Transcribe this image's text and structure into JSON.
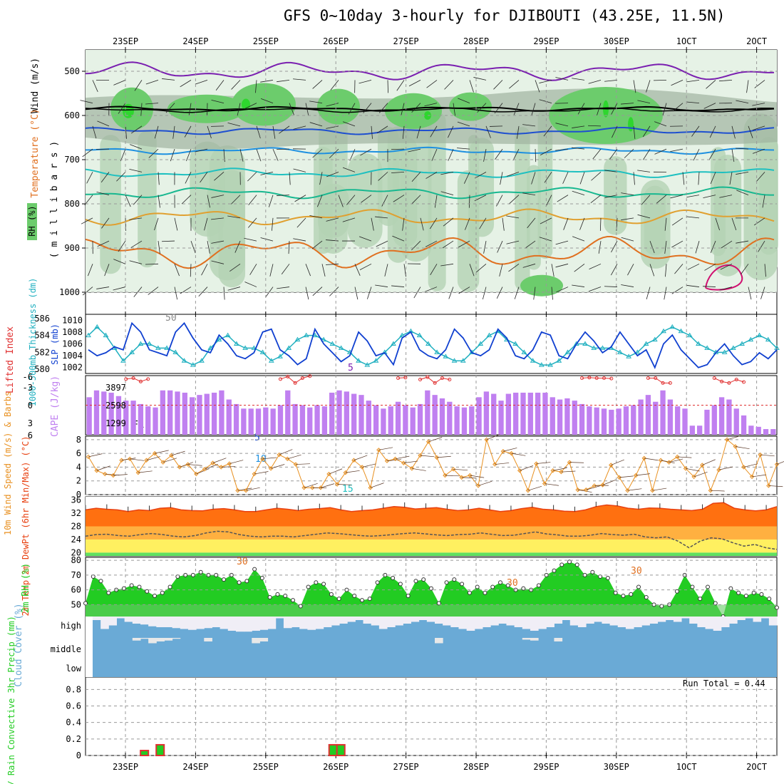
{
  "title": "GFS 0~10day 3-hourly for DJIBOUTI (43.25E, 11.5N)",
  "dates": [
    "23SEP",
    "24SEP",
    "25SEP",
    "26SEP",
    "27SEP",
    "28SEP",
    "29SEP",
    "30SEP",
    "1OCT",
    "2OCT"
  ],
  "run_total": "Run Total = 0.44",
  "colors": {
    "rh_light": "#e6f2e6",
    "rh_mid": "#b4d2b4",
    "rh_gray": "#a0b4a0",
    "rh_green": "#6ccc6c",
    "rh_bright": "#2ed62e",
    "t5_upper": "#7a1fb0",
    "t_fr": "#000000",
    "t5": "#1e4fd0",
    "t10": "#1e90e0",
    "t15": "#1ec0c0",
    "t20": "#18b890",
    "t25": "#e0a030",
    "t30": "#e07020",
    "t_hot": "#d01070",
    "slp": "#1040d0",
    "thk": "#20b0c0",
    "cape": "#c080f0",
    "li": "#e03030",
    "wind10": "#e89020",
    "temp_fill": "#e84010",
    "cloud": "#6aaad6",
    "rh2m": "#22cc22",
    "rain": "#22cc22",
    "conv": "#e03030"
  },
  "chart_data": [
    {
      "type": "contour-heatmap",
      "name": "upper-air",
      "ylabel_parts": [
        "Wind (m/s)",
        "Temperature (°C)",
        "RH (%)"
      ],
      "yunit": "( m i l l i b a r s )",
      "yticks": [
        500,
        600,
        700,
        800,
        900,
        1000
      ],
      "isotherm_labels": [
        "5",
        "FR",
        "5",
        "10",
        "15",
        "20",
        "25",
        "30",
        "30",
        "30",
        "50"
      ],
      "rh_shading": "%"
    },
    {
      "type": "line",
      "name": "slp-thickness",
      "ylabel": "SLP (mb)",
      "ylabel2": "1000-500mb Thickness (dm)",
      "ylim_slp": [
        1001,
        1011
      ],
      "ylim_thk": [
        579.5,
        586.5
      ],
      "yticks_thk": [
        580,
        582,
        584,
        586
      ],
      "yticks_slp": [
        1002,
        1004,
        1006,
        1008,
        1010
      ],
      "slp": [
        1005,
        1004,
        1004.5,
        1005.5,
        1005,
        1009.5,
        1008,
        1005,
        1004.5,
        1004,
        1008,
        1009.5,
        1007,
        1005,
        1004.5,
        1007.5,
        1006,
        1004,
        1003.5,
        1004.5,
        1008,
        1008.5,
        1005,
        1004,
        1002.5,
        1003.5,
        1008.5,
        1006,
        1004.5,
        1003,
        1004,
        1008,
        1006.5,
        1004,
        1004.5,
        1002.5,
        1007,
        1008,
        1005,
        1004,
        1003.5,
        1005,
        1008.5,
        1007,
        1004.5,
        1004,
        1005,
        1008.5,
        1007,
        1004,
        1003.5,
        1005,
        1008,
        1007.5,
        1004,
        1003.5,
        1006,
        1008,
        1006.5,
        1004.5,
        1005.5,
        1008,
        1006,
        1004,
        1005,
        1002,
        1006,
        1007.5,
        1005,
        1003.5,
        1002,
        1002.5,
        1004.5,
        1006,
        1004,
        1002.5,
        1003,
        1004.5,
        1003.5,
        1005
      ],
      "thickness": [
        584,
        585,
        584,
        582.5,
        581,
        582,
        583,
        583,
        582.5,
        582.5,
        582,
        581,
        580.5,
        581,
        582.5,
        583.5,
        584,
        583,
        582.5,
        582.5,
        582,
        581,
        581.5,
        582.5,
        583.5,
        584,
        584,
        583.5,
        583,
        582.5,
        582,
        581,
        580.5,
        581,
        582,
        583,
        584,
        584.5,
        584,
        583,
        582,
        581.5,
        581,
        581,
        582,
        583,
        584,
        584.5,
        583.5,
        583,
        582,
        581,
        580.5,
        580.5,
        581,
        582,
        583,
        583,
        582.5,
        582.5,
        582.5,
        582,
        581.5,
        582,
        583,
        583.5,
        584.5,
        585,
        584.5,
        584,
        583,
        582.5,
        582,
        582,
        582.5,
        583,
        583.5,
        584,
        583.5,
        582.5
      ]
    },
    {
      "type": "bar",
      "name": "cape-li",
      "ylabel": "CAPE (J/kg)",
      "ylabel2": "Lifted Index",
      "yticks_cape": [
        "3897",
        "2598",
        "1299"
      ],
      "yticks_li": [
        "-3",
        "0",
        "3",
        "6"
      ],
      "li_extra": "-6",
      "cape": [
        3300,
        3900,
        3800,
        3700,
        3400,
        3000,
        3000,
        2700,
        2500,
        2400,
        3900,
        3900,
        3800,
        3700,
        3300,
        3500,
        3600,
        3700,
        3900,
        3100,
        2700,
        2300,
        2300,
        2300,
        2400,
        2300,
        2600,
        3900,
        2700,
        2600,
        2400,
        2600,
        2500,
        3700,
        3900,
        3800,
        3600,
        3500,
        3000,
        2600,
        2300,
        2500,
        2900,
        2600,
        2400,
        2700,
        3900,
        3500,
        3200,
        2900,
        2500,
        2400,
        2500,
        3300,
        3800,
        3600,
        3000,
        3600,
        3700,
        3700,
        3700,
        3700,
        3700,
        3300,
        3100,
        3200,
        3000,
        2700,
        2500,
        2400,
        2300,
        2200,
        2300,
        2500,
        2600,
        3100,
        3500,
        2900,
        3900,
        3100,
        2500,
        2300,
        800,
        800,
        2200,
        2600,
        3300,
        3100,
        2300,
        1700,
        800,
        700,
        500,
        500
      ],
      "li": [
        null,
        null,
        null,
        null,
        null,
        -5.3,
        -5.5,
        -4.8,
        -5.3,
        null,
        null,
        null,
        null,
        null,
        null,
        null,
        null,
        null,
        null,
        null,
        null,
        null,
        null,
        null,
        null,
        null,
        -5.3,
        -5.8,
        -4.5,
        -5.5,
        -5.9,
        null,
        null,
        null,
        null,
        null,
        null,
        null,
        null,
        null,
        null,
        null,
        -5.5,
        -5.6,
        null,
        -5.2,
        -5.7,
        -4.5,
        -5.5,
        -5.2,
        null,
        null,
        null,
        null,
        null,
        null,
        null,
        null,
        null,
        null,
        null,
        null,
        null,
        null,
        null,
        null,
        null,
        -5.5,
        -5.6,
        -5.5,
        -5.5,
        -5.4,
        null,
        null,
        null,
        null,
        -5.5,
        -5.5,
        -4.5,
        -4.5,
        null,
        null,
        null,
        null,
        null,
        -5.5,
        -4.8,
        -4.5,
        -5.2,
        -4.7
      ]
    },
    {
      "type": "line",
      "name": "wind10m",
      "ylabel": "10m Wind Speed (m/s) & Barbs",
      "yticks": [
        0,
        2,
        4,
        6,
        8
      ],
      "ylim": [
        0,
        8.5
      ],
      "values": [
        5.5,
        3.5,
        3,
        2.8,
        5,
        5.2,
        3.2,
        5,
        6,
        4.7,
        5.7,
        4,
        4.4,
        3,
        3.7,
        4.6,
        4,
        4.5,
        0.6,
        0.6,
        3,
        5.2,
        3.8,
        5.8,
        5.2,
        4.4,
        1,
        1,
        1,
        3,
        1.5,
        3.2,
        5,
        4,
        1,
        6.5,
        4.9,
        5.2,
        4.6,
        3.8,
        5.7,
        7.7,
        5.4,
        2.8,
        3.7,
        2.5,
        2.8,
        1.3,
        8,
        4.4,
        6.3,
        6,
        3.5,
        0.6,
        4.5,
        1.6,
        3.5,
        3.3,
        4.7,
        0.7,
        0.7,
        1.3,
        1.4,
        4.3,
        2.5,
        0.6,
        2.8,
        5.3,
        0.6,
        5,
        4.7,
        5.5,
        3.8,
        2.6,
        4.3,
        0.6,
        3.6,
        8,
        7,
        4,
        2.6,
        5.8,
        1.3,
        4.4
      ]
    },
    {
      "type": "area",
      "name": "temp2m",
      "ylabel": "2m Temp 2m DewPt (6hr Min/Max) (°C)",
      "yticks": [
        20,
        24,
        28,
        32,
        36
      ],
      "ylim": [
        19,
        37
      ],
      "temp": [
        33,
        33.5,
        33.2,
        33,
        32.5,
        33,
        32.8,
        33.5,
        33.7,
        33,
        32.8,
        32.7,
        33.2,
        33.4,
        33,
        32.5,
        32.5,
        33,
        33.5,
        33.2,
        32.8,
        33.2,
        33.4,
        33.7,
        33,
        32.5,
        32.8,
        33,
        33.5,
        34,
        33.8,
        33.3,
        33.5,
        33.7,
        33.2,
        32.8,
        33,
        33.5,
        33,
        32.5,
        32.8,
        33.4,
        33.8,
        33.2,
        33,
        32.6,
        32.5,
        33,
        34,
        34.5,
        34.2,
        33.5,
        33.2,
        33.6,
        33.5,
        33.2,
        33,
        32.8,
        33.2,
        35,
        35.2,
        33.5,
        33,
        32.7,
        33,
        34
      ],
      "dewpt": [
        25,
        25.5,
        25.6,
        25.2,
        25,
        25.5,
        25.8,
        25.5,
        25,
        24.8,
        25.2,
        26,
        26.5,
        26.3,
        25.5,
        25,
        24.8,
        25,
        25,
        24.8,
        25.2,
        25.6,
        26,
        25.8,
        25.5,
        25.2,
        25,
        25.2,
        25.5,
        25.8,
        26,
        25.7,
        25.4,
        25.2,
        25.5,
        25.6,
        26,
        25.6,
        25.2,
        25.3,
        25.8,
        26.3,
        25.7,
        25.4,
        25,
        25,
        25.3,
        25.8,
        25.5,
        25.3,
        25.6,
        24.8,
        24.5,
        24.8,
        23.5,
        21.5,
        23.5,
        24.5,
        24.2,
        23,
        22,
        22.5,
        21.5,
        21
      ]
    },
    {
      "type": "area",
      "name": "rh2m",
      "ylabel": "2m RH (%)",
      "yticks": [
        50,
        60,
        70,
        80
      ],
      "ylim": [
        42,
        82
      ],
      "values": [
        51,
        69,
        66,
        58,
        60,
        61,
        63,
        62,
        59,
        56,
        58,
        62,
        69,
        70,
        70,
        72,
        70,
        70,
        67,
        70,
        65,
        66,
        74,
        68,
        55,
        57,
        56,
        53,
        49,
        62,
        65,
        64,
        57,
        54,
        60,
        56,
        53,
        54,
        65,
        70,
        68,
        64,
        56,
        66,
        67,
        61,
        51,
        65,
        67,
        64,
        58,
        62,
        58,
        62,
        65,
        63,
        60,
        61,
        60,
        63,
        70,
        73,
        77,
        79,
        77,
        70,
        72,
        69,
        68,
        58,
        56,
        57,
        62,
        55,
        50,
        49,
        50,
        59,
        70,
        62,
        54,
        62,
        51,
        42,
        61,
        58,
        56,
        58,
        57,
        54,
        48
      ]
    },
    {
      "type": "heatmap",
      "name": "cloud-cover",
      "ylabel": "Cloud Cover (%)",
      "rows": [
        "high",
        "middle",
        "low"
      ],
      "high": [
        80,
        30,
        50,
        90,
        70,
        60,
        55,
        45,
        40,
        40,
        35,
        30,
        25,
        30,
        35,
        40,
        30,
        20,
        15,
        15,
        20,
        25,
        30,
        90,
        35,
        40,
        30,
        25,
        30,
        40,
        50,
        60,
        70,
        80,
        60,
        50,
        30,
        40,
        50,
        60,
        70,
        80,
        70,
        60,
        50,
        40,
        30,
        20,
        30,
        40,
        50,
        60,
        50,
        40,
        30,
        20,
        30,
        40,
        60,
        80,
        50,
        40,
        60,
        70,
        60,
        50,
        40,
        30,
        40,
        50,
        60,
        70,
        80,
        70,
        90,
        60,
        40,
        30,
        20,
        40,
        60,
        80,
        90,
        70,
        90,
        50
      ],
      "middle": [
        0,
        0,
        0,
        0,
        0,
        15,
        5,
        30,
        20,
        15,
        5,
        0,
        0,
        0,
        20,
        0,
        0,
        0,
        0,
        0,
        30,
        20,
        0,
        0,
        0,
        0,
        0,
        0,
        0,
        0,
        0,
        0,
        0,
        0,
        0,
        0,
        0,
        0,
        0,
        0,
        0,
        0,
        0,
        30,
        0,
        0,
        0,
        0,
        0,
        0,
        0,
        0,
        0,
        0,
        10,
        15,
        0,
        0,
        20,
        0,
        0,
        0,
        0,
        0,
        0,
        0,
        0,
        0,
        0,
        0,
        0,
        0,
        0,
        0,
        0,
        0,
        0,
        0,
        0,
        0,
        0,
        0,
        0,
        0,
        0,
        0
      ]
    },
    {
      "type": "bar",
      "name": "precip",
      "ylabel": "Total / Rain Convective 3hr Precip (mm)",
      "yticks": [
        0,
        0.2,
        0.4,
        0.6,
        0.8
      ],
      "ylim": [
        0,
        0.95
      ],
      "bars": [
        {
          "idx": 6,
          "value": 0.06
        },
        {
          "idx": 8,
          "value": 0.13
        },
        {
          "idx": 30,
          "value": 0.13
        },
        {
          "idx": 31,
          "value": 0.13
        }
      ]
    }
  ]
}
